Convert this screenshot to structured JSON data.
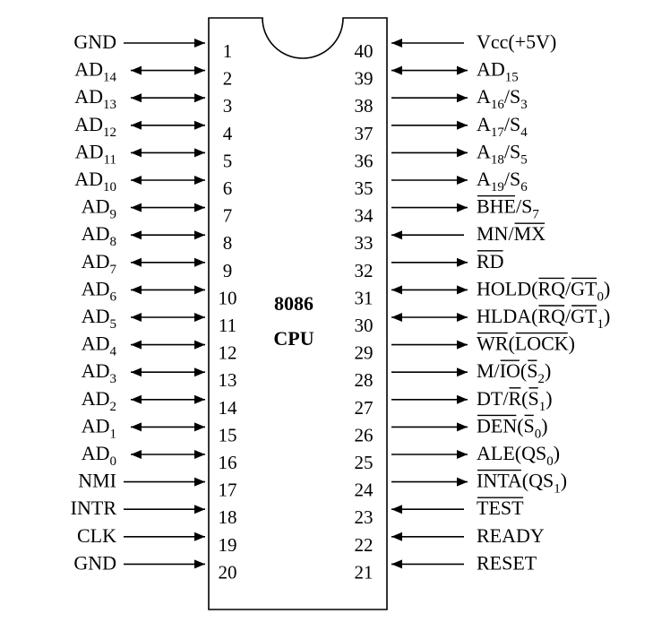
{
  "chip": {
    "name": "8086",
    "subtitle": "CPU"
  },
  "left_pins": [
    {
      "num": "1",
      "base": "GND",
      "sub": "",
      "dir": "in"
    },
    {
      "num": "2",
      "base": "AD",
      "sub": "14",
      "dir": "both"
    },
    {
      "num": "3",
      "base": "AD",
      "sub": "13",
      "dir": "both"
    },
    {
      "num": "4",
      "base": "AD",
      "sub": "12",
      "dir": "both"
    },
    {
      "num": "5",
      "base": "AD",
      "sub": "11",
      "dir": "both"
    },
    {
      "num": "6",
      "base": "AD",
      "sub": "10",
      "dir": "both"
    },
    {
      "num": "7",
      "base": "AD",
      "sub": "9",
      "dir": "both"
    },
    {
      "num": "8",
      "base": "AD",
      "sub": "8",
      "dir": "both"
    },
    {
      "num": "9",
      "base": "AD",
      "sub": "7",
      "dir": "both"
    },
    {
      "num": "10",
      "base": "AD",
      "sub": "6",
      "dir": "both"
    },
    {
      "num": "11",
      "base": "AD",
      "sub": "5",
      "dir": "both"
    },
    {
      "num": "12",
      "base": "AD",
      "sub": "4",
      "dir": "both"
    },
    {
      "num": "13",
      "base": "AD",
      "sub": "3",
      "dir": "both"
    },
    {
      "num": "14",
      "base": "AD",
      "sub": "2",
      "dir": "both"
    },
    {
      "num": "15",
      "base": "AD",
      "sub": "1",
      "dir": "both"
    },
    {
      "num": "16",
      "base": "AD",
      "sub": "0",
      "dir": "both"
    },
    {
      "num": "17",
      "base": "NMI",
      "sub": "",
      "dir": "in"
    },
    {
      "num": "18",
      "base": "INTR",
      "sub": "",
      "dir": "in"
    },
    {
      "num": "19",
      "base": "CLK",
      "sub": "",
      "dir": "in"
    },
    {
      "num": "20",
      "base": "GND",
      "sub": "",
      "dir": "in"
    }
  ],
  "right_pins": [
    {
      "num": "40",
      "dir": "in",
      "parts": [
        {
          "t": "Vcc(+5V)"
        }
      ]
    },
    {
      "num": "39",
      "dir": "both",
      "parts": [
        {
          "t": "AD"
        },
        {
          "t": "15",
          "sub": true
        }
      ]
    },
    {
      "num": "38",
      "dir": "out",
      "parts": [
        {
          "t": "A"
        },
        {
          "t": "16",
          "sub": true
        },
        {
          "t": "/S"
        },
        {
          "t": "3",
          "sub": true
        }
      ]
    },
    {
      "num": "37",
      "dir": "out",
      "parts": [
        {
          "t": "A"
        },
        {
          "t": "17",
          "sub": true
        },
        {
          "t": "/S"
        },
        {
          "t": "4",
          "sub": true
        }
      ]
    },
    {
      "num": "36",
      "dir": "out",
      "parts": [
        {
          "t": "A"
        },
        {
          "t": "18",
          "sub": true
        },
        {
          "t": "/S"
        },
        {
          "t": "5",
          "sub": true
        }
      ]
    },
    {
      "num": "35",
      "dir": "out",
      "parts": [
        {
          "t": "A"
        },
        {
          "t": "19",
          "sub": true
        },
        {
          "t": "/S"
        },
        {
          "t": "6",
          "sub": true
        }
      ]
    },
    {
      "num": "34",
      "dir": "out",
      "parts": [
        {
          "t": "BHE",
          "ov": true
        },
        {
          "t": "/S"
        },
        {
          "t": "7",
          "sub": true
        }
      ]
    },
    {
      "num": "33",
      "dir": "in",
      "parts": [
        {
          "t": "MN/"
        },
        {
          "t": "MX",
          "ov": true
        }
      ]
    },
    {
      "num": "32",
      "dir": "out",
      "parts": [
        {
          "t": "RD",
          "ov": true
        }
      ]
    },
    {
      "num": "31",
      "dir": "both",
      "parts": [
        {
          "t": "HOLD("
        },
        {
          "t": "RQ",
          "ov": true
        },
        {
          "t": "/"
        },
        {
          "t": "GT",
          "ov": true
        },
        {
          "t": "0",
          "sub": true
        },
        {
          "t": ")"
        }
      ]
    },
    {
      "num": "30",
      "dir": "both",
      "parts": [
        {
          "t": "HLDA("
        },
        {
          "t": "RQ",
          "ov": true
        },
        {
          "t": "/"
        },
        {
          "t": "GT",
          "ov": true
        },
        {
          "t": "1",
          "sub": true
        },
        {
          "t": ")"
        }
      ]
    },
    {
      "num": "29",
      "dir": "out",
      "parts": [
        {
          "t": "WR",
          "ov": true
        },
        {
          "t": "("
        },
        {
          "t": "LOCK",
          "ov": true
        },
        {
          "t": ")"
        }
      ]
    },
    {
      "num": "28",
      "dir": "out",
      "parts": [
        {
          "t": "M/"
        },
        {
          "t": "IO",
          "ov": true
        },
        {
          "t": "("
        },
        {
          "t": "S",
          "ov": true
        },
        {
          "t": "2",
          "sub": true
        },
        {
          "t": ")"
        }
      ]
    },
    {
      "num": "27",
      "dir": "out",
      "parts": [
        {
          "t": "DT/"
        },
        {
          "t": "R",
          "ov": true
        },
        {
          "t": "("
        },
        {
          "t": "S",
          "ov": true
        },
        {
          "t": "1",
          "sub": true
        },
        {
          "t": ")"
        }
      ]
    },
    {
      "num": "26",
      "dir": "out",
      "parts": [
        {
          "t": "DEN",
          "ov": true
        },
        {
          "t": "("
        },
        {
          "t": "S",
          "ov": true
        },
        {
          "t": "0",
          "sub": true
        },
        {
          "t": ")"
        }
      ]
    },
    {
      "num": "25",
      "dir": "out",
      "parts": [
        {
          "t": "ALE(QS"
        },
        {
          "t": "0",
          "sub": true
        },
        {
          "t": ")"
        }
      ]
    },
    {
      "num": "24",
      "dir": "out",
      "parts": [
        {
          "t": "INTA",
          "ov": true
        },
        {
          "t": "(QS"
        },
        {
          "t": "1",
          "sub": true
        },
        {
          "t": ")"
        }
      ]
    },
    {
      "num": "23",
      "dir": "in",
      "parts": [
        {
          "t": "TEST",
          "ov": true
        }
      ]
    },
    {
      "num": "22",
      "dir": "in",
      "parts": [
        {
          "t": "READY"
        }
      ]
    },
    {
      "num": "21",
      "dir": "in",
      "parts": [
        {
          "t": "RESET"
        }
      ]
    }
  ]
}
